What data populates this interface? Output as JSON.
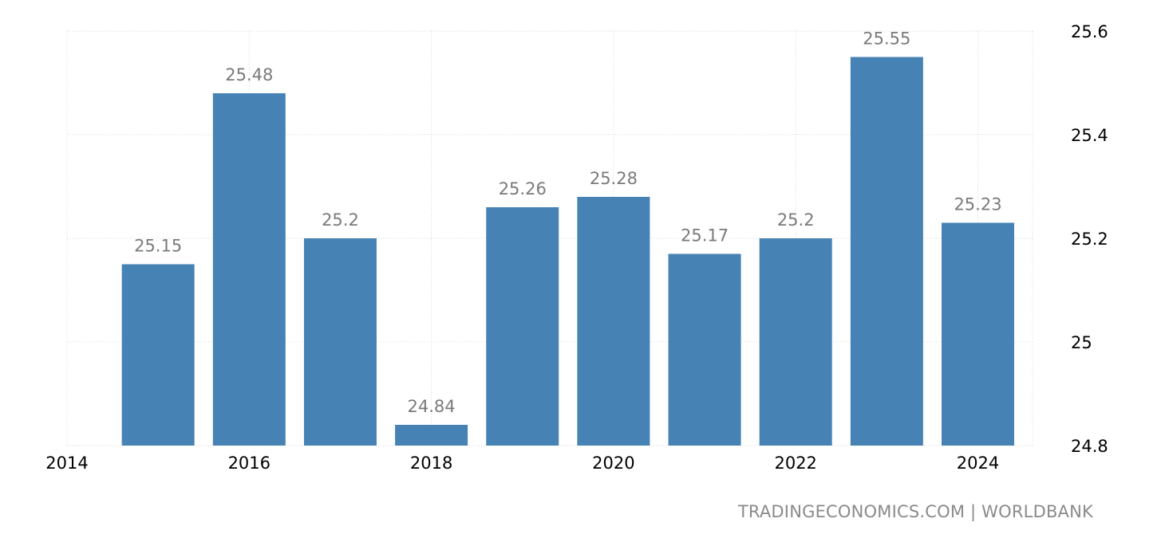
{
  "chart_data": {
    "type": "bar",
    "title": "",
    "xlabel": "",
    "ylabel": "",
    "categories": [
      "2015",
      "2016",
      "2017",
      "2018",
      "2019",
      "2020",
      "2021",
      "2022",
      "2023",
      "2024"
    ],
    "values": [
      25.15,
      25.48,
      25.2,
      24.84,
      25.26,
      25.28,
      25.17,
      25.2,
      25.55,
      25.23
    ],
    "value_labels": [
      "25.15",
      "25.48",
      "25.2",
      "24.84",
      "25.26",
      "25.28",
      "25.17",
      "25.2",
      "25.55",
      "25.23"
    ],
    "ylim": [
      24.8,
      25.6
    ],
    "y_ticks": [
      "24.8",
      "25",
      "25.2",
      "25.4",
      "25.6"
    ],
    "xlim": [
      2014,
      2024.6
    ],
    "x_ticks": [
      "2014",
      "2016",
      "2018",
      "2020",
      "2022",
      "2024"
    ],
    "y_axis_side": "right",
    "grid": true,
    "bar_color": "#4682b4"
  },
  "source": {
    "text": "TRADINGECONOMICS.COM | WORLDBANK"
  }
}
